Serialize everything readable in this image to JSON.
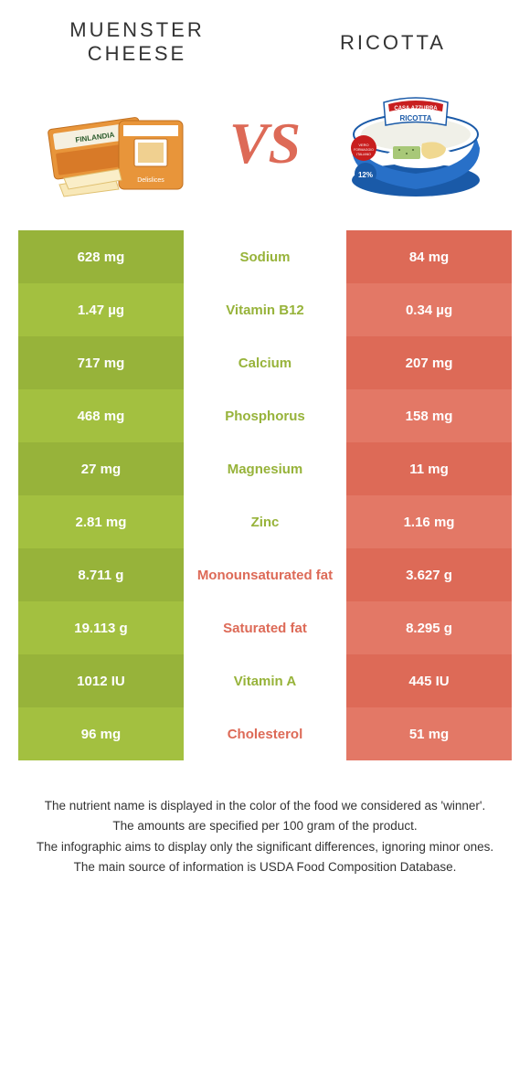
{
  "left_title": "MUENSTER CHEESE",
  "right_title": "RICOTTA",
  "vs": "VS",
  "colors": {
    "left_a": "#97b33a",
    "left_b": "#a3c040",
    "right_a": "#dd6a57",
    "right_b": "#e37866",
    "mid_left": "#97b33a",
    "mid_right": "#dd6a57"
  },
  "rows": [
    {
      "left": "628 mg",
      "mid": "Sodium",
      "right": "84 mg",
      "winner": "left"
    },
    {
      "left": "1.47 µg",
      "mid": "Vitamin B12",
      "right": "0.34 µg",
      "winner": "left"
    },
    {
      "left": "717 mg",
      "mid": "Calcium",
      "right": "207 mg",
      "winner": "left"
    },
    {
      "left": "468 mg",
      "mid": "Phosphorus",
      "right": "158 mg",
      "winner": "left"
    },
    {
      "left": "27 mg",
      "mid": "Magnesium",
      "right": "11 mg",
      "winner": "left"
    },
    {
      "left": "2.81 mg",
      "mid": "Zinc",
      "right": "1.16 mg",
      "winner": "left"
    },
    {
      "left": "8.711 g",
      "mid": "Monounsaturated fat",
      "right": "3.627 g",
      "winner": "right"
    },
    {
      "left": "19.113 g",
      "mid": "Saturated fat",
      "right": "8.295 g",
      "winner": "right"
    },
    {
      "left": "1012 IU",
      "mid": "Vitamin A",
      "right": "445 IU",
      "winner": "left"
    },
    {
      "left": "96 mg",
      "mid": "Cholesterol",
      "right": "51 mg",
      "winner": "right"
    }
  ],
  "footer": [
    "The nutrient name is displayed in the color of the food we considered as 'winner'.",
    "The amounts are specified per 100 gram of the product.",
    "The infographic aims to display only the significant differences, ignoring minor ones.",
    "The main source of information is USDA Food Composition Database."
  ]
}
